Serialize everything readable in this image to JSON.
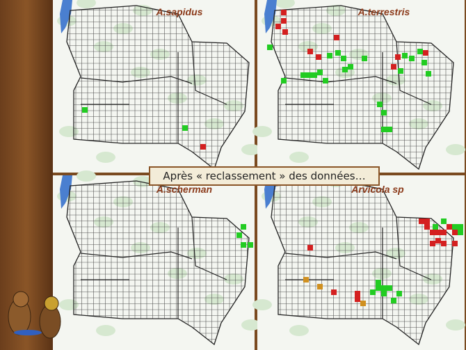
{
  "banner": "Après « reclassement » des données…",
  "panels": [
    {
      "title": "A.sapidus"
    },
    {
      "title": "A.terrestris"
    },
    {
      "title": "A.scherman"
    },
    {
      "title": "Arvicola sp"
    }
  ]
}
